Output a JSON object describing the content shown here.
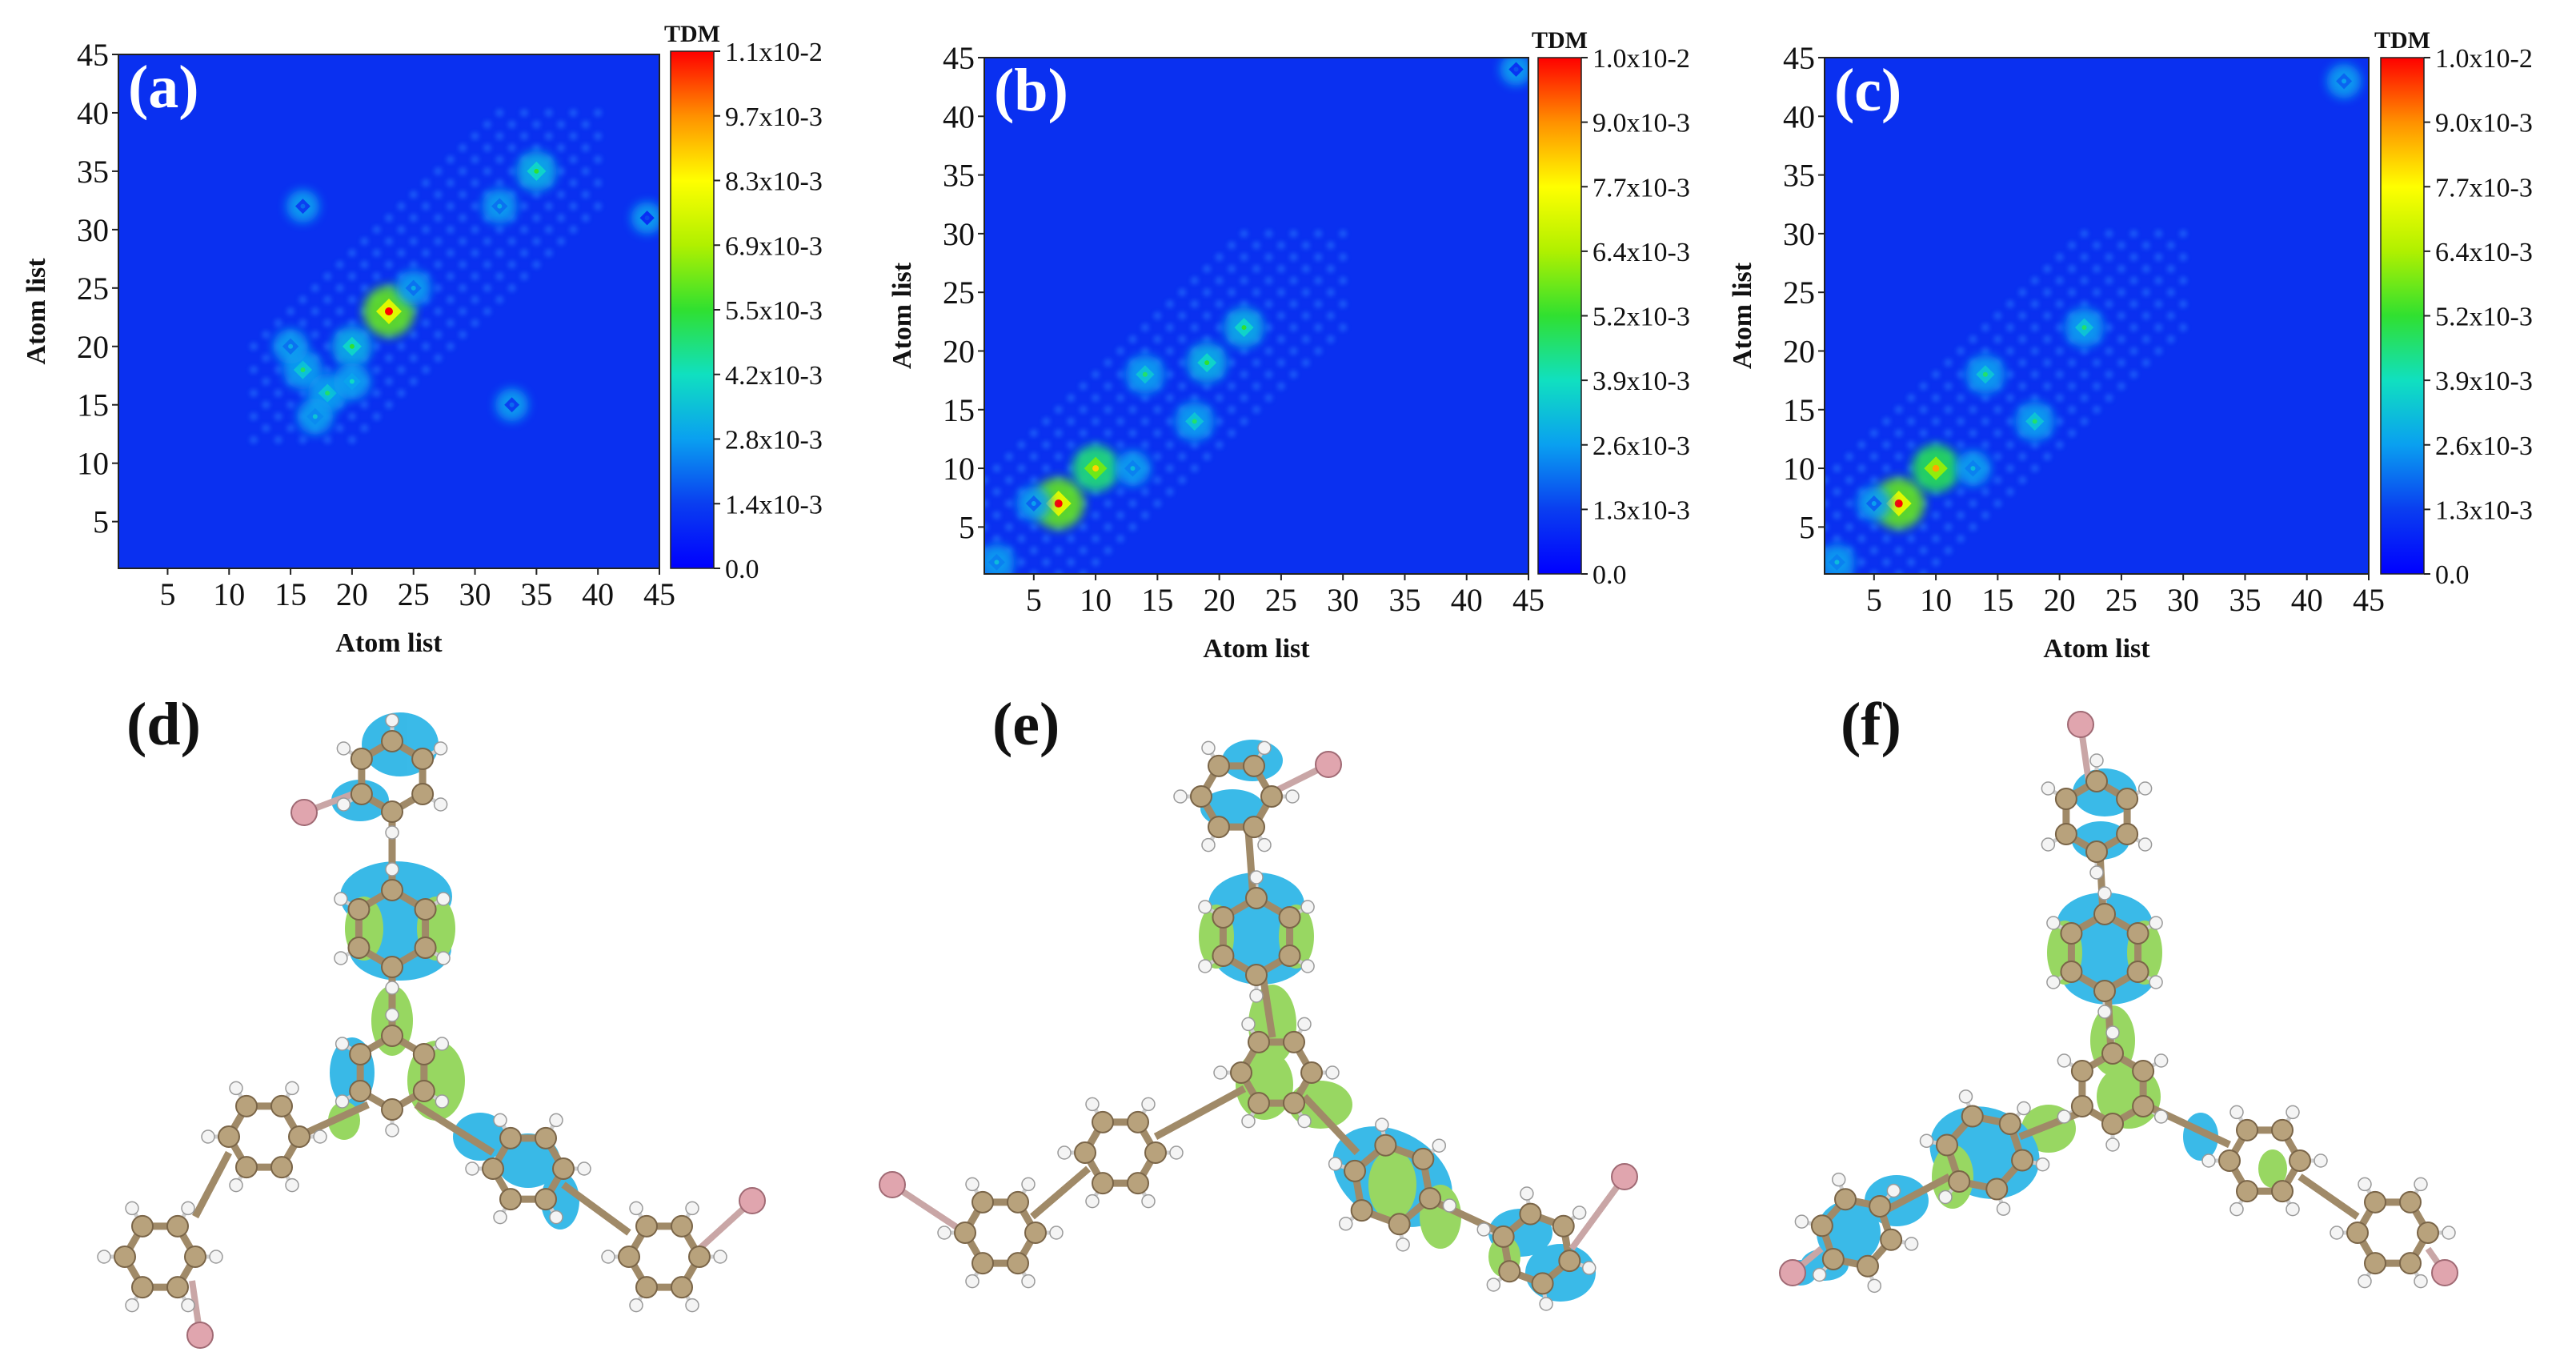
{
  "chart_data": [
    {
      "panel": "(a)",
      "type": "heatmap",
      "title": "",
      "xlabel": "Atom list",
      "ylabel": "Atom list",
      "xlim": [
        1,
        45
      ],
      "ylim": [
        1,
        45
      ],
      "xticks": [
        "5",
        "10",
        "15",
        "20",
        "25",
        "30",
        "35",
        "40",
        "45"
      ],
      "yticks": [
        "5",
        "10",
        "15",
        "20",
        "25",
        "30",
        "35",
        "40",
        "45"
      ],
      "colorbar_title": "TDM",
      "colorbar_range": [
        0.0,
        0.011
      ],
      "colorbar_ticks": [
        "0.0",
        "1.4x10-3",
        "2.8x10-3",
        "4.2x10-3",
        "5.5x10-3",
        "6.9x10-3",
        "8.3x10-3",
        "9.7x10-3",
        "1.1x10-2"
      ],
      "hotspots": [
        {
          "x": 23,
          "y": 23,
          "value": 0.011
        },
        {
          "x": 20,
          "y": 20,
          "value": 0.0055
        },
        {
          "x": 35,
          "y": 35,
          "value": 0.0055
        },
        {
          "x": 16,
          "y": 18,
          "value": 0.005
        },
        {
          "x": 18,
          "y": 16,
          "value": 0.005
        },
        {
          "x": 20,
          "y": 17,
          "value": 0.004
        },
        {
          "x": 17,
          "y": 14,
          "value": 0.0035
        },
        {
          "x": 15,
          "y": 20,
          "value": 0.003
        },
        {
          "x": 32,
          "y": 32,
          "value": 0.003
        },
        {
          "x": 25,
          "y": 25,
          "value": 0.003
        },
        {
          "x": 16,
          "y": 32,
          "value": 0.002
        },
        {
          "x": 33,
          "y": 15,
          "value": 0.002
        },
        {
          "x": 44,
          "y": 31,
          "value": 0.0015
        }
      ]
    },
    {
      "panel": "(b)",
      "type": "heatmap",
      "title": "",
      "xlabel": "Atom list",
      "ylabel": "Atom list",
      "xlim": [
        1,
        45
      ],
      "ylim": [
        1,
        45
      ],
      "xticks": [
        "5",
        "10",
        "15",
        "20",
        "25",
        "30",
        "35",
        "40",
        "45"
      ],
      "yticks": [
        "5",
        "10",
        "15",
        "20",
        "25",
        "30",
        "35",
        "40",
        "45"
      ],
      "colorbar_title": "TDM",
      "colorbar_range": [
        0.0,
        0.01
      ],
      "colorbar_ticks": [
        "0.0",
        "1.3x10-3",
        "2.6x10-3",
        "3.9x10-3",
        "5.2x10-3",
        "6.4x10-3",
        "7.7x10-3",
        "9.0x10-3",
        "1.0x10-2"
      ],
      "hotspots": [
        {
          "x": 7,
          "y": 7,
          "value": 0.01
        },
        {
          "x": 10,
          "y": 10,
          "value": 0.008
        },
        {
          "x": 22,
          "y": 22,
          "value": 0.005
        },
        {
          "x": 19,
          "y": 19,
          "value": 0.005
        },
        {
          "x": 14,
          "y": 18,
          "value": 0.0045
        },
        {
          "x": 18,
          "y": 14,
          "value": 0.0045
        },
        {
          "x": 13,
          "y": 10,
          "value": 0.003
        },
        {
          "x": 2,
          "y": 2,
          "value": 0.003
        },
        {
          "x": 5,
          "y": 7,
          "value": 0.0025
        },
        {
          "x": 44,
          "y": 44,
          "value": 0.0015
        }
      ]
    },
    {
      "panel": "(c)",
      "type": "heatmap",
      "title": "",
      "xlabel": "Atom list",
      "ylabel": "Atom list",
      "xlim": [
        1,
        45
      ],
      "ylim": [
        1,
        45
      ],
      "xticks": [
        "5",
        "10",
        "15",
        "20",
        "25",
        "30",
        "35",
        "40",
        "45"
      ],
      "yticks": [
        "5",
        "10",
        "15",
        "20",
        "25",
        "30",
        "35",
        "40",
        "45"
      ],
      "colorbar_title": "TDM",
      "colorbar_range": [
        0.0,
        0.01
      ],
      "colorbar_ticks": [
        "0.0",
        "1.3x10-3",
        "2.6x10-3",
        "3.9x10-3",
        "5.2x10-3",
        "6.4x10-3",
        "7.7x10-3",
        "9.0x10-3",
        "1.0x10-2"
      ],
      "hotspots": [
        {
          "x": 7,
          "y": 7,
          "value": 0.01
        },
        {
          "x": 10,
          "y": 10,
          "value": 0.0085
        },
        {
          "x": 22,
          "y": 22,
          "value": 0.0045
        },
        {
          "x": 14,
          "y": 18,
          "value": 0.0045
        },
        {
          "x": 18,
          "y": 14,
          "value": 0.0045
        },
        {
          "x": 2,
          "y": 2,
          "value": 0.003
        },
        {
          "x": 13,
          "y": 10,
          "value": 0.003
        },
        {
          "x": 43,
          "y": 43,
          "value": 0.0025
        },
        {
          "x": 5,
          "y": 7,
          "value": 0.0025
        }
      ]
    }
  ],
  "molecule_panels": [
    {
      "label": "(d)"
    },
    {
      "label": "(e)"
    },
    {
      "label": "(f)"
    }
  ],
  "colors": {
    "colormap": [
      "#0000ff",
      "#0a3ef0",
      "#0aa0f0",
      "#10e0c0",
      "#30e030",
      "#b0f000",
      "#ffff00",
      "#ff9000",
      "#ff0000"
    ],
    "carbon": "#b8a27c",
    "hydrogen": "#f4f4f4",
    "bromine": "#e0a5ae",
    "bond": "#a08a68",
    "iso_blue": "#29b4e6",
    "iso_green": "#8fd454"
  }
}
